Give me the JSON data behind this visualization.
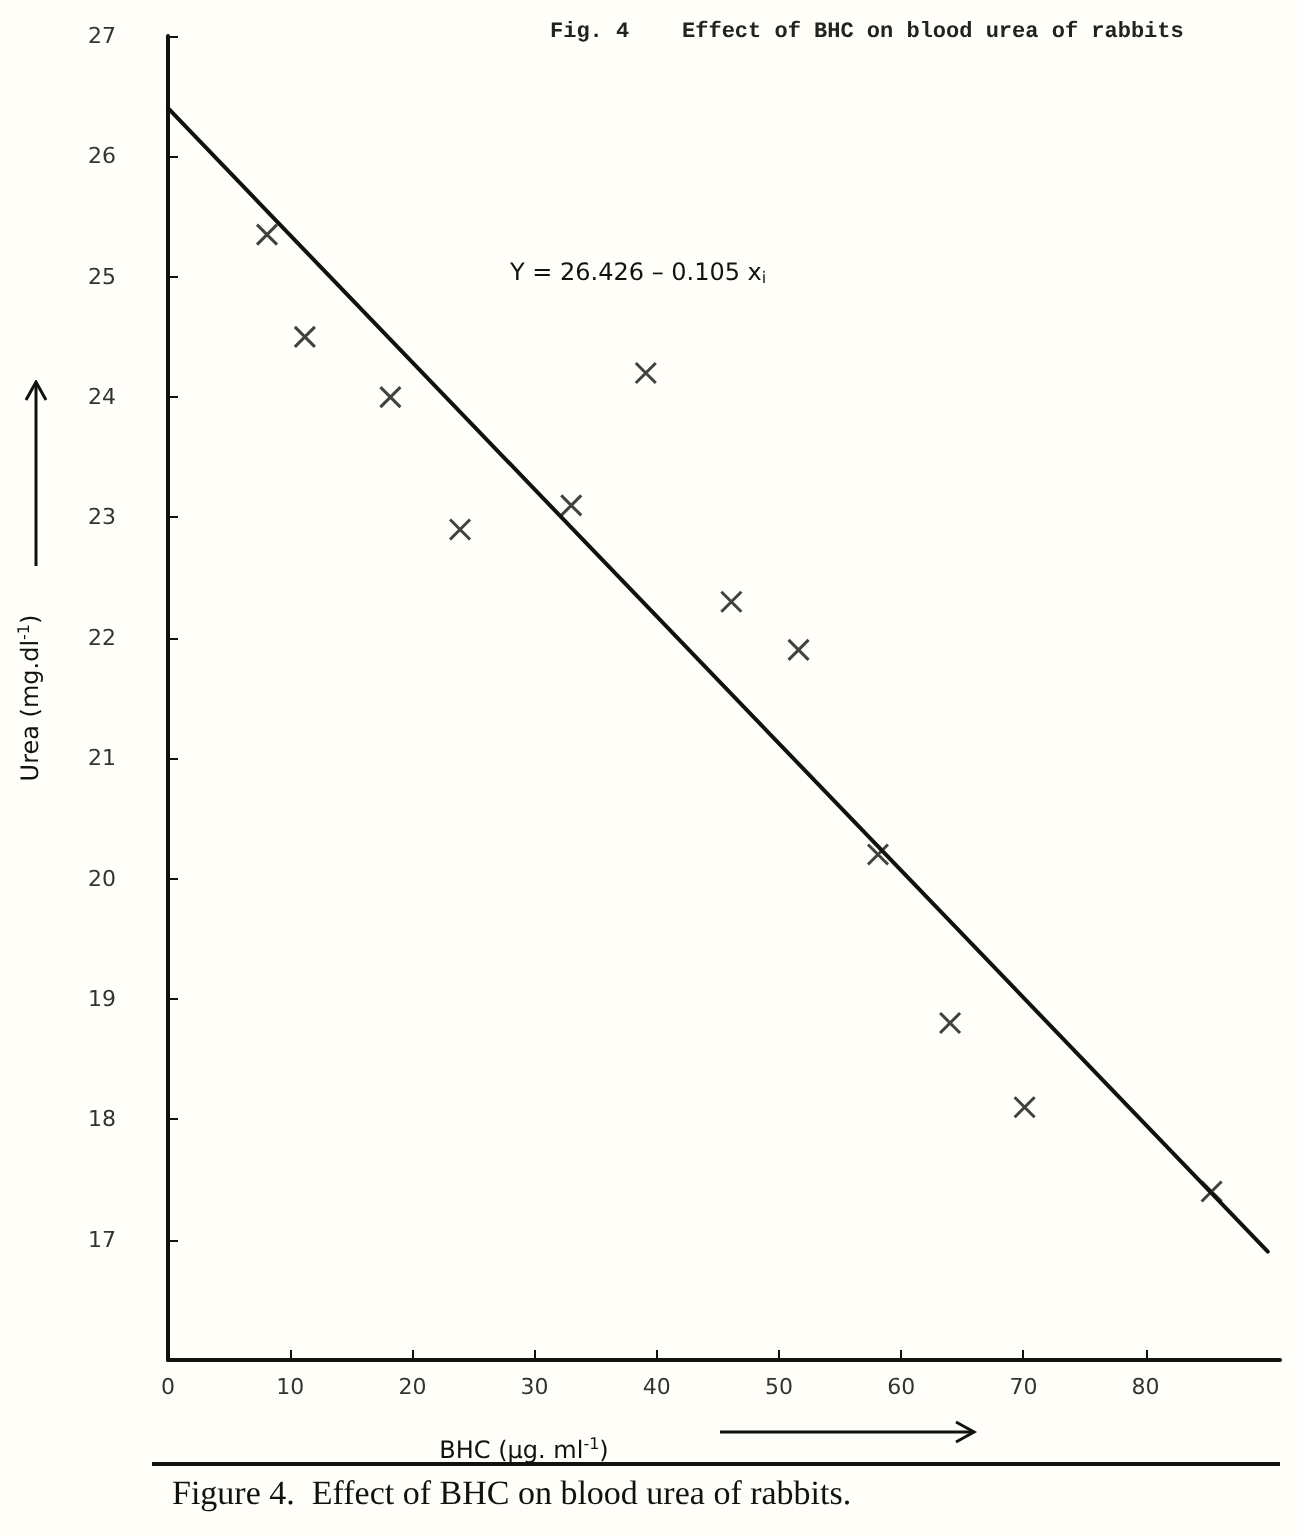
{
  "chart_data": {
    "type": "scatter",
    "title": "Fig. 4    Effect of BHC on blood urea of rabbits",
    "xlabel": "BHC (µg. ml$^{-1}$)",
    "ylabel": "Urea (mg.dl$^{-1}$)",
    "annotations": [
      "Y = 26.426 – 0.105 x$_{i}$",
      "Figure 4.  Effect of BHC on blood urea of rabbits."
    ],
    "series": [
      {
        "type": "scatter",
        "color": "#111111",
        "marker": "cross",
        "x": [
          8.1,
          11.2,
          18.2,
          23.9,
          33.0,
          39.1,
          46.1,
          51.6,
          58.1,
          64.0,
          70.1,
          85.4
        ],
        "values": [
          25.35,
          24.5,
          24.0,
          22.9,
          23.1,
          24.2,
          22.3,
          21.9,
          20.2,
          18.8,
          18.1,
          17.4
        ]
      },
      {
        "type": "line",
        "color": "#111111",
        "marker": "none",
        "line_style": "solid",
        "x": [
          0,
          90
        ],
        "values": [
          26.4,
          16.9
        ]
      }
    ],
    "xlim": [
      0,
      91
    ],
    "xticks": [
      0,
      10,
      20,
      30,
      40,
      50,
      60,
      70,
      80
    ],
    "ylim": [
      16,
      27
    ],
    "yticks": [
      17,
      18,
      19,
      20,
      21,
      22,
      23,
      24,
      25,
      26,
      27
    ],
    "grid": false
  }
}
